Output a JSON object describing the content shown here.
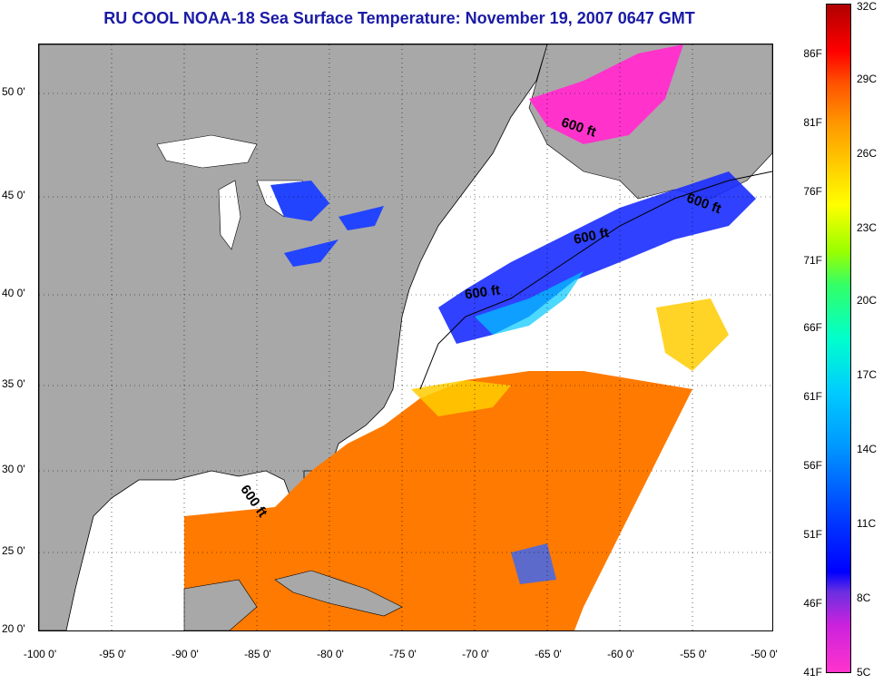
{
  "title": "RU COOL  NOAA-18  Sea Surface Temperature:  November 19, 2007 0647 GMT",
  "latitude_ticks": [
    "50 0'",
    "45 0'",
    "40 0'",
    "35 0'",
    "30 0'",
    "25 0'",
    "20 0'"
  ],
  "longitude_ticks": [
    "-100 0'",
    "-95 0'",
    "-90 0'",
    "-85 0'",
    "-80 0'",
    "-75 0'",
    "-70 0'",
    "-65 0'",
    "-60 0'",
    "-55 0'",
    "-50 0'"
  ],
  "contour_labels": [
    "600 ft",
    "600 ft",
    "600 ft",
    "600 ft",
    "600 ft"
  ],
  "colorbar": {
    "fahrenheit": [
      "86F",
      "81F",
      "76F",
      "71F",
      "66F",
      "61F",
      "56F",
      "51F",
      "46F",
      "41F"
    ],
    "celsius": [
      "32C",
      "29C",
      "26C",
      "23C",
      "20C",
      "17C",
      "14C",
      "11C",
      "8C",
      "5C"
    ]
  },
  "colors": {
    "land": "#a8a8a8",
    "cloud": "#ffffff",
    "title": "#1a1aa6",
    "warm": "#ff7a00",
    "cold": "#ff33cc"
  }
}
